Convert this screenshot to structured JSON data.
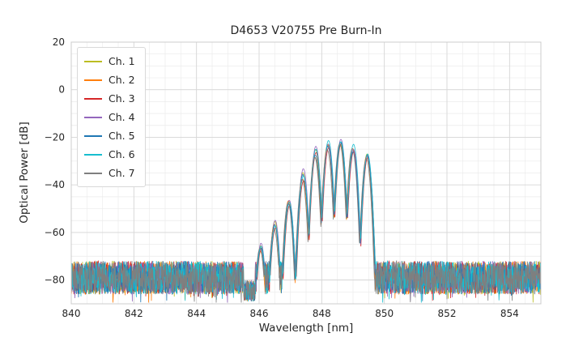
{
  "chart_data": {
    "type": "line",
    "title": "D4653 V20755 Pre Burn-In",
    "xlabel": "Wavelength [nm]",
    "ylabel": "Optical Power [dB]",
    "xlim": [
      840,
      855
    ],
    "ylim": [
      -90,
      20
    ],
    "xticks": [
      840,
      842,
      844,
      846,
      848,
      850,
      852,
      854
    ],
    "yticks": [
      20,
      0,
      -20,
      -40,
      -60,
      -80
    ],
    "x_minor_step_nm": 0.5,
    "y_minor_step_db": 5,
    "grid": true,
    "legend_position": "upper left",
    "series": [
      {
        "name": "Ch. 1",
        "color": "#bcbd22"
      },
      {
        "name": "Ch. 2",
        "color": "#ff7f0e"
      },
      {
        "name": "Ch. 3",
        "color": "#d62728"
      },
      {
        "name": "Ch. 4",
        "color": "#9467bd"
      },
      {
        "name": "Ch. 5",
        "color": "#1f77b4"
      },
      {
        "name": "Ch. 6",
        "color": "#17becf"
      },
      {
        "name": "Ch. 7",
        "color": "#7f7f7f"
      }
    ],
    "spectrum": {
      "noise_floor_top_db": -72,
      "noise_floor_bottom_db": -86,
      "notch_nm": [
        845.5,
        845.88
      ],
      "band_nm": [
        845.95,
        849.75
      ],
      "lobes": [
        {
          "nm": 846.05,
          "db": -66
        },
        {
          "nm": 846.5,
          "db": -57
        },
        {
          "nm": 846.95,
          "db": -47
        },
        {
          "nm": 847.4,
          "db": -36
        },
        {
          "nm": 847.8,
          "db": -26
        },
        {
          "nm": 848.2,
          "db": -23
        },
        {
          "nm": 848.6,
          "db": -22.5
        },
        {
          "nm": 849.0,
          "db": -25
        },
        {
          "nm": 849.45,
          "db": -27.5
        }
      ],
      "lobe_halfwidth_nm": 0.18,
      "lobe_rolloff_db": 25,
      "channel_wavelength_jitter_nm": 0.03,
      "channel_amplitude_jitter_db": 1.5,
      "sample_step_nm": 0.01
    }
  },
  "colors": {
    "background": "#ffffff",
    "grid_major": "#d6d6d6",
    "grid_minor": "#ebebeb",
    "spine": "#cccccc",
    "text": "#262626",
    "legend_border": "#d9d9d9"
  }
}
